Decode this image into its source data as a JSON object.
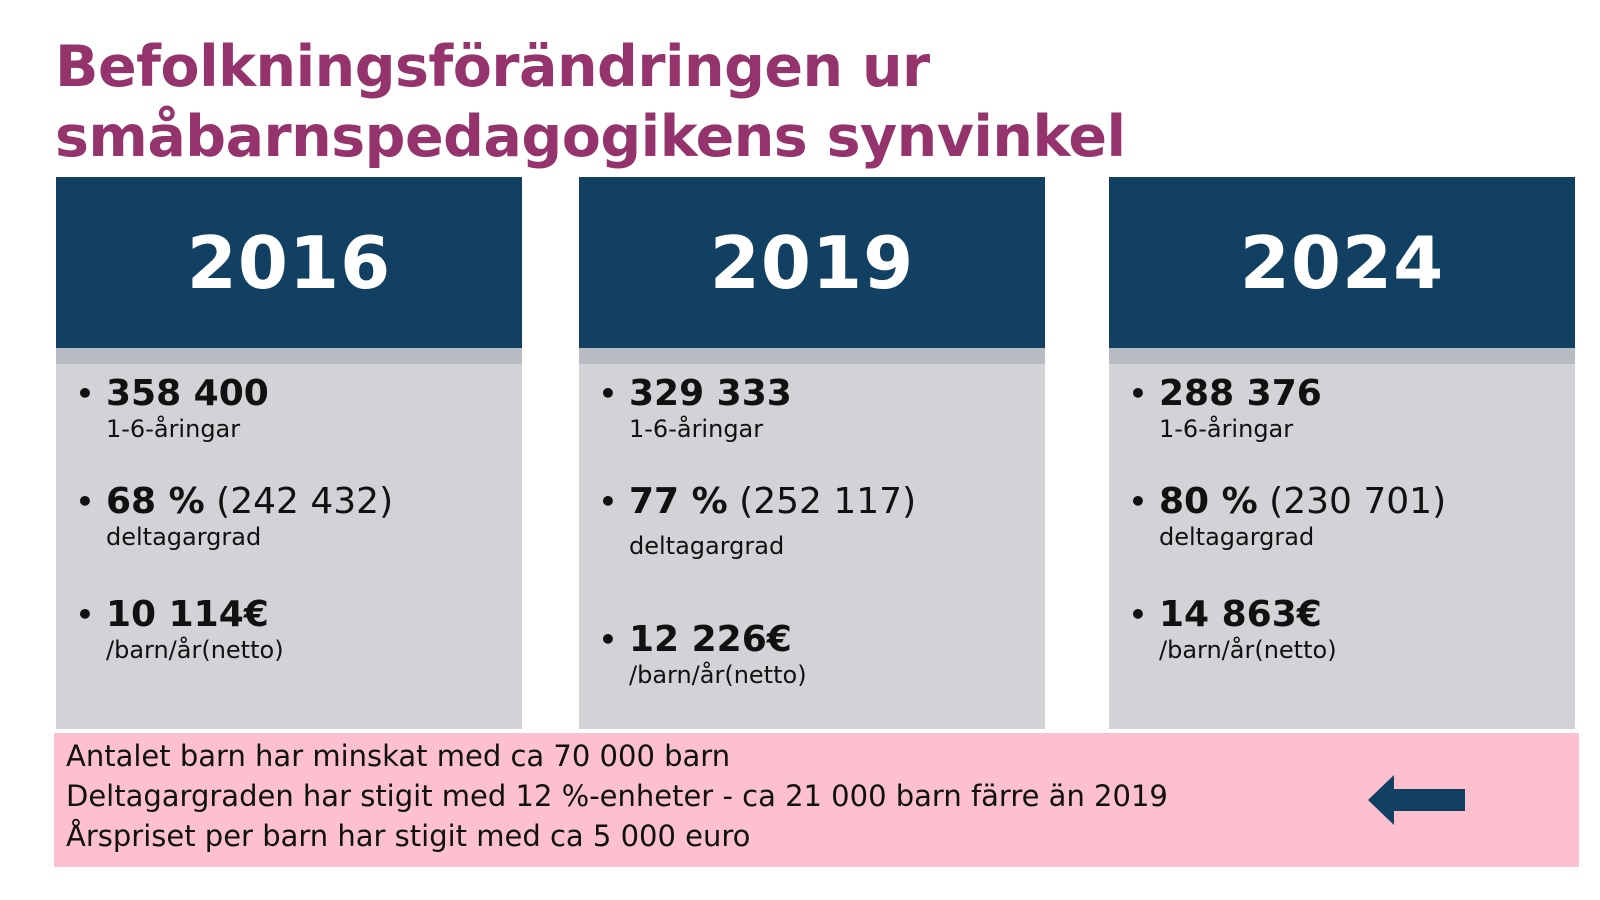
{
  "title": {
    "line1": "Befolkningsförändringen ur",
    "line2": "småbarnspedagogikens synvinkel"
  },
  "cards": [
    {
      "year": "2016",
      "population": "358 400",
      "population_label": "1-6-åringar",
      "participation_rate": "68 %",
      "participation_count": "(242 432)",
      "participation_label": "deltagargrad",
      "cost": "10 114€",
      "cost_label": "/barn/år(netto)"
    },
    {
      "year": "2019",
      "population": "329 333",
      "population_label": "1-6-åringar",
      "participation_rate": "77 %",
      "participation_count": "(252 117)",
      "participation_label": "deltagargrad",
      "cost": "12 226€",
      "cost_label": "/barn/år(netto)"
    },
    {
      "year": "2024",
      "population": "288 376",
      "population_label": "1-6-åringar",
      "participation_rate": "80 %",
      "participation_count": "(230 701)",
      "participation_label": "deltagargrad",
      "cost": "14 863€",
      "cost_label": "/barn/år(netto)"
    }
  ],
  "summary": {
    "lines": [
      "Antalet barn har minskat med ca 70 000 barn",
      "Deltagargraden har stigit med 12 %-enheter - ca 21 000 barn färre än 2019",
      "Årspriset per barn har stigit med ca 5 000 euro"
    ]
  },
  "icons": {
    "arrow": "arrow-left-icon"
  },
  "colors": {
    "title": "#94336c",
    "card_header": "#124063",
    "card_body": "#d1d3d6",
    "summary_background": "#fcc0ce",
    "arrow": "#124063"
  }
}
